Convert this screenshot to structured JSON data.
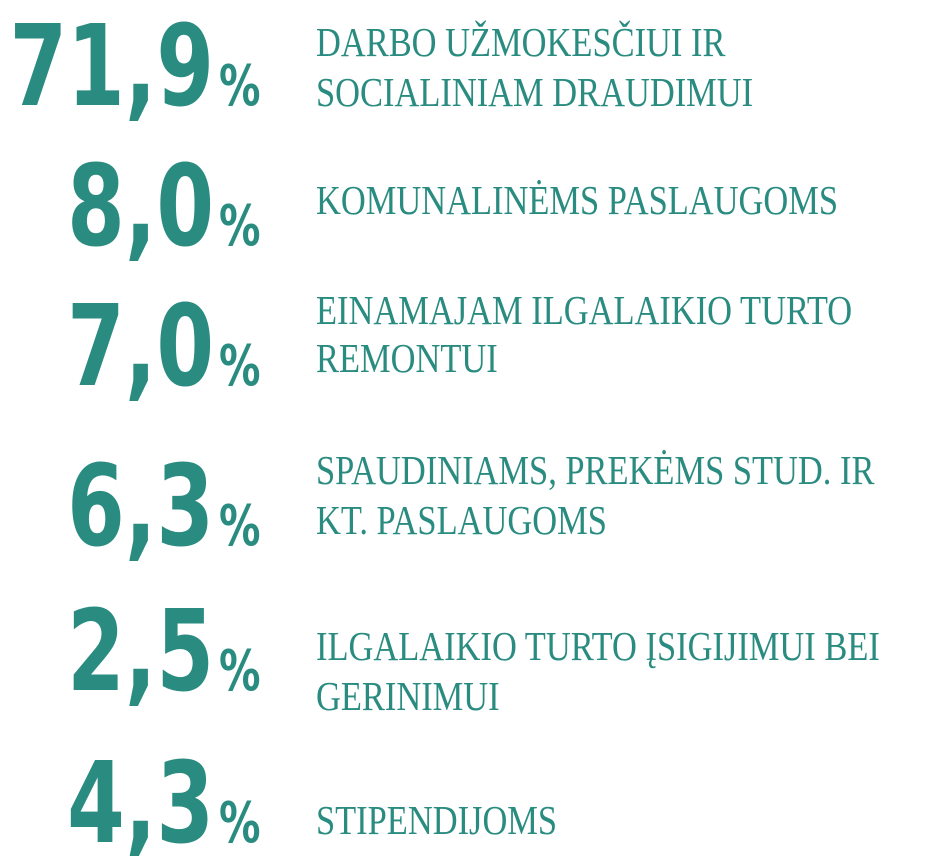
{
  "items": [
    {
      "number": "71,9",
      "unit": "%",
      "lines": [
        "DARBO UŽMOKESČIUI IR",
        "SOCIALINIAM DRAUDIMUI"
      ]
    },
    {
      "number": "8,0",
      "unit": "%",
      "lines": [
        "KOMUNALINĖMS PASLAUGOMS"
      ]
    },
    {
      "number": "7,0",
      "unit": "%",
      "lines": [
        "EINAMAJAM ILGALAIKIO TURTO",
        "REMONTUI"
      ]
    },
    {
      "number": "6,3",
      "unit": "%",
      "lines": [
        "SPAUDINIAMS, PREKĖMS STUD. IR",
        "KT. PASLAUGOMS"
      ]
    },
    {
      "number": "2,5",
      "unit": "%",
      "lines": [
        "ILGALAIKIO TURTO ĮSIGIJIMUI BEI",
        "GERINIMUI"
      ]
    },
    {
      "number": "4,3",
      "unit": "%",
      "lines": [
        "STIPENDIJOMS"
      ]
    }
  ]
}
